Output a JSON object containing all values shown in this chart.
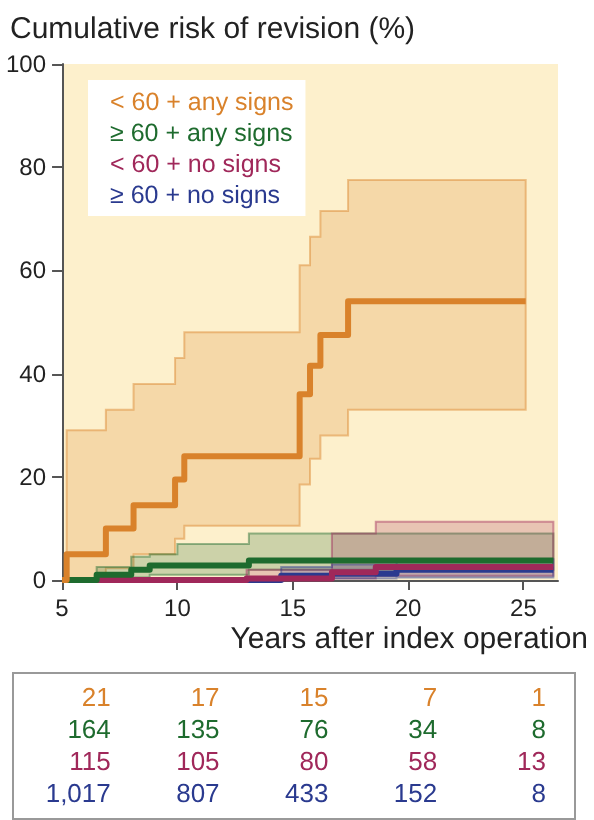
{
  "chart_data": {
    "type": "step",
    "title": "Cumulative risk of revision (%)",
    "xlabel": "Years after index operation",
    "xlim": [
      5,
      26.5
    ],
    "xticks": [
      5,
      10,
      15,
      20,
      25
    ],
    "ylim": [
      0,
      100
    ],
    "yticks": [
      0,
      20,
      40,
      60,
      80,
      100
    ],
    "grid": false,
    "legend": "top left",
    "marker": "none",
    "series": [
      {
        "name": "< 60 + any signs",
        "color": "#d9822b",
        "x": [
          5,
          5.2,
          6.9,
          8.1,
          9.9,
          10.3,
          15.3,
          15.75,
          16.2,
          17.4,
          25.1
        ],
        "values": [
          0,
          5,
          10,
          14.5,
          19.5,
          24,
          36,
          41.5,
          47.5,
          54,
          54
        ],
        "lower": [
          0,
          0,
          2.3,
          5,
          8,
          10.5,
          18.5,
          23.5,
          28,
          33,
          33
        ],
        "upper": [
          0,
          29,
          33,
          38,
          43,
          48,
          61,
          66.5,
          71.5,
          77.5,
          77.5
        ]
      },
      {
        "name": "≥ 60 + any signs",
        "color": "#1e6b2e",
        "x": [
          5,
          6.5,
          8,
          8.8,
          10,
          13.1,
          26.3
        ],
        "values": [
          0,
          1,
          2,
          2.8,
          2.8,
          3.8,
          3.8
        ],
        "lower": [
          0,
          0,
          0.5,
          1,
          1,
          2,
          2
        ],
        "upper": [
          0,
          2.5,
          4.5,
          5,
          7,
          9,
          9
        ]
      },
      {
        "name": "< 60 + no signs",
        "color": "#a0285a",
        "x": [
          5,
          13,
          16.7,
          18.6,
          26.3
        ],
        "values": [
          0,
          0.3,
          1.5,
          2.5,
          2.5
        ],
        "lower": [
          0,
          0,
          0.3,
          0.8,
          0.8
        ],
        "upper": [
          0,
          2,
          9,
          11.3,
          11.3
        ]
      },
      {
        "name": "≥ 60 + no signs",
        "color": "#2a3a8f",
        "x": [
          5,
          14.5,
          16.7,
          19.5,
          26.3
        ],
        "values": [
          0,
          0.8,
          1.2,
          2,
          2
        ],
        "lower": [
          0,
          0,
          0.3,
          0.5,
          0.5
        ],
        "upper": [
          0,
          2.5,
          3,
          4,
          4
        ]
      }
    ],
    "annotations": [
      "21",
      "17",
      "15",
      "7",
      "1",
      "164",
      "135",
      "76",
      "34",
      "8",
      "115",
      "105",
      "80",
      "58",
      "13",
      "1,017",
      "807",
      "433",
      "152",
      "8"
    ]
  }
}
